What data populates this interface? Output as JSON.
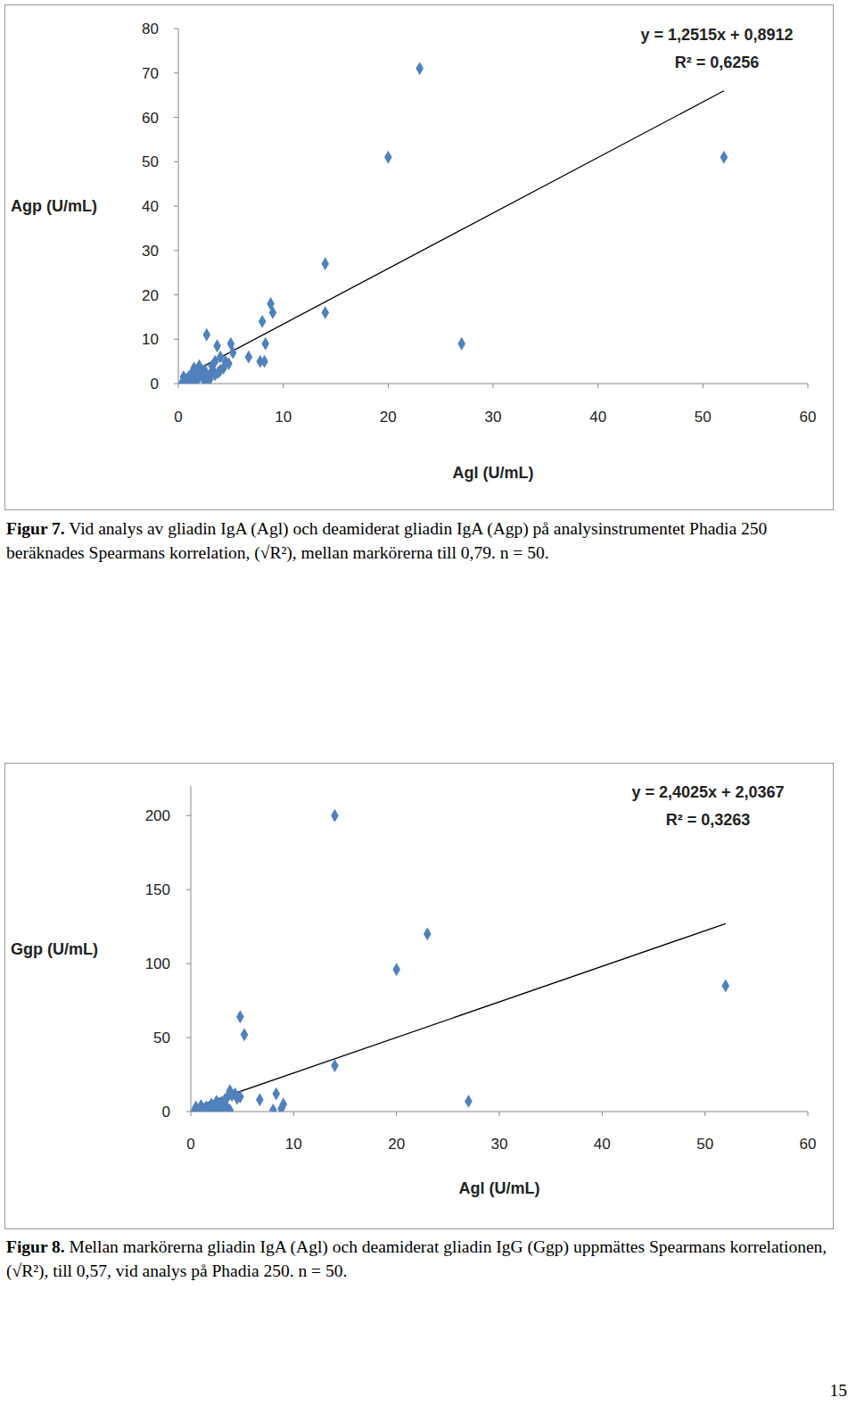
{
  "chart_data": [
    {
      "type": "scatter",
      "x_label": "Agl (U/mL)",
      "y_label": "Agp (U/mL)",
      "color": "#4f81bd",
      "marker": "diamond",
      "xlim": [
        0,
        60
      ],
      "xticks": [
        0,
        10,
        20,
        30,
        40,
        50,
        60
      ],
      "ylim": [
        0,
        80
      ],
      "yticks": [
        0,
        10,
        20,
        30,
        40,
        50,
        60,
        70,
        80
      ],
      "grid": false,
      "x": [
        0.3,
        0.5,
        0.8,
        1,
        1.2,
        1.5,
        1.5,
        1.8,
        2,
        2,
        2.3,
        2.5,
        2.5,
        2.7,
        3,
        3,
        3.2,
        3.5,
        3.5,
        3.7,
        4,
        4,
        4.3,
        4.5,
        4.8,
        5,
        5.2,
        6.7,
        7.8,
        8,
        8.2,
        8.3,
        8.8,
        9,
        14,
        14,
        20,
        23,
        27,
        52,
        0.5,
        1,
        1.3,
        1.8,
        2.2,
        2.8,
        3.3,
        3.8,
        1.5,
        2.5
      ],
      "values": [
        0,
        0.5,
        1,
        0.5,
        2,
        1,
        2.5,
        3,
        1.5,
        4,
        2,
        0.5,
        3,
        11,
        1,
        2,
        4,
        2,
        5,
        8.5,
        3,
        6,
        3.5,
        5,
        4.5,
        9,
        7,
        6,
        5,
        14,
        5,
        9,
        18,
        16,
        27,
        16,
        51,
        71,
        9,
        51,
        1.5,
        1.5,
        0,
        1,
        2.5,
        1.5,
        3,
        2.5,
        3.5,
        2
      ],
      "trendline": {
        "x": [
          0.3,
          52
        ],
        "values": [
          1.27,
          65.97
        ]
      },
      "annotations": [
        "y = 1,2515x + 0,8912",
        "R² = 0,6256"
      ],
      "caption": {
        "label": "Figur 7.",
        "text": "Vid analys av gliadin IgA (Agl) och deamiderat gliadin IgA (Agp) på analysinstrumentet Phadia 250 beräknades Spearmans korrelation, (√R²), mellan markörerna till 0,79. n = 50."
      }
    },
    {
      "type": "scatter",
      "x_label": "Agl (U/mL)",
      "y_label": "Ggp (U/mL)",
      "color": "#4f81bd",
      "marker": "diamond",
      "xlim": [
        0,
        60
      ],
      "xticks": [
        0,
        10,
        20,
        30,
        40,
        50,
        60
      ],
      "ylim": [
        0,
        220
      ],
      "yticks": [
        0,
        50,
        100,
        150,
        200
      ],
      "grid": false,
      "x": [
        14,
        23,
        20,
        52,
        4.8,
        5.2,
        14,
        27,
        6.7,
        8.3,
        9,
        8.8,
        8,
        3.8,
        4,
        4.8,
        3.5,
        3.8,
        3,
        2.5,
        2.8,
        2,
        2,
        1.5,
        1.3,
        1,
        0.8,
        0.5,
        0.3,
        2.3,
        3,
        1.5,
        1.8,
        2.5,
        3.3,
        4.3,
        1,
        0.5,
        2,
        3.5,
        1.2,
        1.7,
        2.7,
        3.2,
        4.5,
        0.7,
        1.4,
        2.2,
        2.9,
        0.9
      ],
      "values": [
        200,
        120,
        96,
        85,
        64,
        52,
        31,
        7,
        8,
        12,
        5,
        2,
        1,
        14,
        11,
        10,
        9,
        1,
        6,
        4,
        2,
        5,
        1,
        3,
        0,
        2,
        0,
        1,
        0,
        0,
        0,
        1,
        3,
        7,
        8,
        12,
        4,
        3,
        0,
        3,
        1,
        0,
        1,
        4,
        9,
        0.5,
        2,
        2,
        5,
        1
      ],
      "trendline": {
        "x": [
          0.3,
          52
        ],
        "values": [
          2.76,
          126.97
        ]
      },
      "annotations": [
        "y = 2,4025x + 2,0367",
        "R² = 0,3263"
      ],
      "caption": {
        "label": "Figur 8.",
        "text": "Mellan markörerna gliadin IgA (Agl) och deamiderat gliadin IgG (Ggp) uppmättes Spearmans korrelationen, (√R²), till 0,57, vid analys på Phadia 250. n = 50."
      }
    }
  ],
  "page": {
    "number": 15
  }
}
